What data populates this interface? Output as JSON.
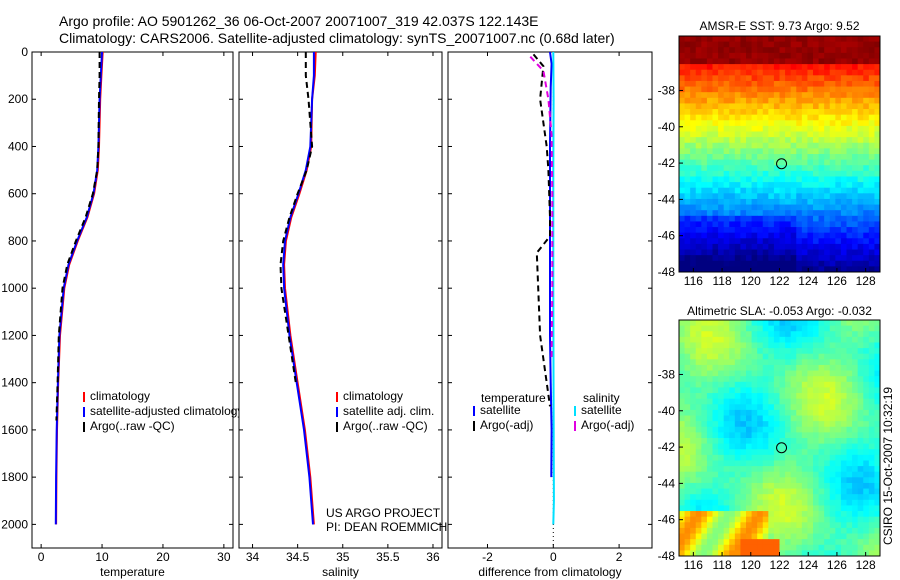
{
  "header": {
    "line1": "Argo profile: AO 5901262_36 06-Oct-2007 20071007_319 42.037S 122.143E",
    "line2": "Climatology: CARS2006. Satellite-adjusted climatology: synTS_20071007.nc (0.68d later)"
  },
  "chart_data": [
    {
      "type": "line",
      "name": "temperature-profile",
      "xlabel": "temperature",
      "ylabel": "",
      "xlim": [
        -1.5,
        31.5
      ],
      "ylim": [
        0,
        2100
      ],
      "y_reversed": true,
      "xticks": [
        0,
        10,
        20,
        30
      ],
      "yticks": [
        0,
        200,
        400,
        600,
        800,
        1000,
        1200,
        1400,
        1600,
        1800,
        2000
      ],
      "legend": [
        "climatology",
        "satellite-adjusted climatology",
        "Argo(..raw -QC)"
      ],
      "series": [
        {
          "name": "climatology",
          "color": "#ff0000",
          "x": [
            10.1,
            9.9,
            9.7,
            9.5,
            9.3,
            8.7,
            7.6,
            6.0,
            4.6,
            3.8,
            3.1,
            2.8,
            2.6,
            2.5,
            2.45
          ],
          "y": [
            0,
            100,
            200,
            400,
            500,
            600,
            700,
            800,
            900,
            1000,
            1200,
            1400,
            1600,
            1800,
            2000
          ]
        },
        {
          "name": "satellite-adjusted climatology",
          "color": "#0000ff",
          "x": [
            10.0,
            9.8,
            9.6,
            9.4,
            9.2,
            8.6,
            7.5,
            5.9,
            4.5,
            3.7,
            3.0,
            2.75,
            2.55,
            2.45,
            2.4
          ],
          "y": [
            0,
            100,
            200,
            400,
            500,
            600,
            700,
            800,
            900,
            1000,
            1200,
            1400,
            1600,
            1800,
            2000
          ]
        },
        {
          "name": "Argo(..raw -QC)",
          "color": "#000000",
          "dashed": true,
          "x": [
            9.6,
            9.6,
            9.5,
            9.4,
            9.2,
            8.5,
            7.3,
            5.7,
            4.3,
            3.5,
            2.9,
            2.7,
            2.5
          ],
          "y": [
            0,
            100,
            200,
            400,
            500,
            600,
            700,
            800,
            900,
            1000,
            1200,
            1400,
            1560
          ]
        }
      ]
    },
    {
      "type": "line",
      "name": "salinity-profile",
      "xlabel": "salinity",
      "ylabel": "",
      "xlim": [
        33.85,
        36.1
      ],
      "ylim": [
        0,
        2100
      ],
      "y_reversed": true,
      "xticks": [
        34,
        34.5,
        35,
        35.5,
        36
      ],
      "yticks": [
        0,
        200,
        400,
        600,
        800,
        1000,
        1200,
        1400,
        1600,
        1800,
        2000
      ],
      "legend": [
        "climatology",
        "satellite adj. clim.",
        "Argo(..raw -QC)"
      ],
      "series": [
        {
          "name": "climatology",
          "color": "#ff0000",
          "x": [
            34.7,
            34.69,
            34.66,
            34.65,
            34.6,
            34.52,
            34.43,
            34.37,
            34.35,
            34.36,
            34.42,
            34.5,
            34.58,
            34.64,
            34.68
          ],
          "y": [
            0,
            100,
            200,
            400,
            500,
            600,
            700,
            800,
            900,
            1000,
            1200,
            1400,
            1600,
            1800,
            2000
          ]
        },
        {
          "name": "satellite adj. clim.",
          "color": "#0000ff",
          "x": [
            34.68,
            34.68,
            34.66,
            34.64,
            34.59,
            34.51,
            34.42,
            34.36,
            34.34,
            34.35,
            34.41,
            34.49,
            34.57,
            34.63,
            34.67
          ],
          "y": [
            0,
            100,
            200,
            400,
            500,
            600,
            700,
            800,
            900,
            1000,
            1200,
            1400,
            1600,
            1800,
            2000
          ]
        },
        {
          "name": "Argo(..raw -QC)",
          "color": "#000000",
          "dashed": true,
          "x": [
            34.59,
            34.59,
            34.62,
            34.66,
            34.6,
            34.5,
            34.41,
            34.34,
            34.31,
            34.32,
            34.4,
            34.48
          ],
          "y": [
            0,
            100,
            200,
            400,
            500,
            600,
            700,
            800,
            900,
            1000,
            1200,
            1400
          ]
        }
      ]
    },
    {
      "type": "line",
      "name": "difference-profile",
      "xlabel": "difference from climatology",
      "ylabel": "",
      "xlim": [
        -3.2,
        3.0
      ],
      "ylim": [
        0,
        2100
      ],
      "y_reversed": true,
      "xticks": [
        -2,
        0,
        2
      ],
      "tick_labels": [
        "-2",
        "0",
        "2"
      ],
      "yticks": [
        0,
        200,
        400,
        600,
        800,
        1000,
        1200,
        1400,
        1600,
        1800,
        2000
      ],
      "legend_title_left": "temperature",
      "legend_title_right": "salinity",
      "legend_left": [
        "satellite",
        "Argo(-adj)"
      ],
      "legend_right": [
        "satellite",
        "Argo(-adj)"
      ],
      "series": [
        {
          "name": "temperature satellite",
          "color": "#0000ff",
          "x": [
            -0.1,
            -0.05,
            -0.08,
            -0.1,
            -0.1,
            -0.1,
            -0.08,
            -0.05,
            -0.06
          ],
          "y": [
            0,
            50,
            150,
            400,
            800,
            1200,
            1400,
            1600,
            1800
          ]
        },
        {
          "name": "temperature Argo(-adj)",
          "color": "#000000",
          "dashed": true,
          "x": [
            -0.6,
            -0.3,
            -0.4,
            -0.2,
            -0.15,
            -0.1,
            -0.1,
            -0.5,
            -0.4,
            -0.1
          ],
          "y": [
            10,
            60,
            200,
            400,
            500,
            700,
            780,
            850,
            1200,
            1500
          ]
        },
        {
          "name": "salinity satellite",
          "color": "#00e0ff",
          "x": [
            0.0,
            0.01,
            0.0,
            0.0,
            0.01,
            0.02,
            0.0
          ],
          "y": [
            0,
            200,
            500,
            1000,
            1500,
            1900,
            2000
          ]
        },
        {
          "name": "salinity Argo(-adj)",
          "color": "#e000e0",
          "dashed": true,
          "x": [
            -0.7,
            -0.3,
            -0.15,
            -0.05,
            -0.03,
            -0.03,
            -0.05
          ],
          "y": [
            20,
            80,
            200,
            350,
            600,
            1000,
            1300
          ]
        }
      ]
    }
  ],
  "maps": [
    {
      "title": "AMSR-E SST: 9.73  Argo: 9.52",
      "kind": "sst",
      "xlim": [
        115,
        129
      ],
      "ylim": [
        -48,
        -35
      ],
      "xticks": [
        116,
        118,
        120,
        122,
        124,
        126,
        128
      ],
      "yticks": [
        -38,
        -40,
        -42,
        -44,
        -46,
        -48
      ],
      "marker": {
        "lon": 122.143,
        "lat": -42.037
      }
    },
    {
      "title": "Altimetric SLA: -0.053  Argo: -0.032",
      "kind": "sla",
      "xlim": [
        115,
        129
      ],
      "ylim": [
        -48,
        -35
      ],
      "xticks": [
        116,
        118,
        120,
        122,
        124,
        126,
        128
      ],
      "yticks": [
        -38,
        -40,
        -42,
        -44,
        -46,
        -48
      ],
      "marker": {
        "lon": 122.143,
        "lat": -42.037
      }
    }
  ],
  "notes": {
    "project_line1": "US ARGO PROJECT",
    "project_line2": "PI: DEAN ROEMMICH",
    "credit": "CSIRO 15-Oct-2007 10:32:19"
  }
}
